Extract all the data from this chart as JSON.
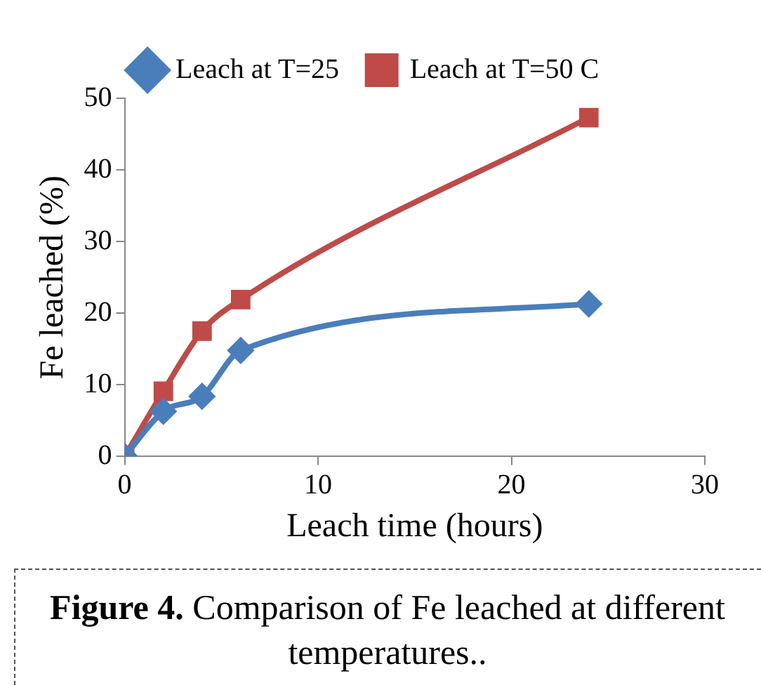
{
  "chart_data": {
    "type": "line",
    "xlabel": "Leach time (hours)",
    "ylabel": "Fe leached (%)",
    "x": [
      0,
      2,
      4,
      6,
      24
    ],
    "series": [
      {
        "name": "Leach at T=25",
        "color": "#4a7ebb",
        "marker": "diamond",
        "values": [
          0,
          6.3,
          8.4,
          14.8,
          21.3
        ]
      },
      {
        "name": "Leach at T=50 C",
        "color": "#be4b48",
        "marker": "square",
        "values": [
          0,
          9.1,
          17.5,
          21.9,
          47.3
        ]
      }
    ],
    "xlim": [
      0,
      30
    ],
    "xticks": [
      0,
      10,
      20,
      30
    ],
    "ylim": [
      0,
      50
    ],
    "yticks": [
      0,
      10,
      20,
      30,
      40,
      50
    ],
    "grid": false,
    "legend": "top",
    "annotations": [
      "Figure 4.",
      "Comparison of Fe leached at different temperatures.."
    ]
  }
}
